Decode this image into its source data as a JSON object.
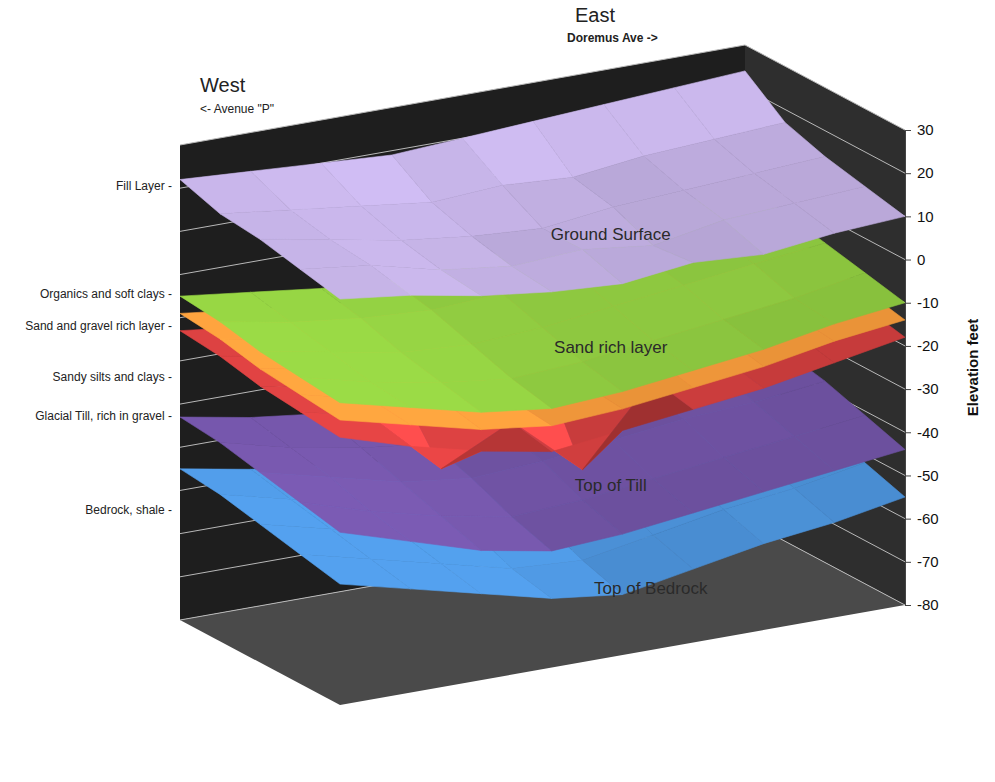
{
  "chart_data": {
    "type": "surface3d",
    "ylabel": "Elevation feet",
    "ylim": [
      -80,
      30
    ],
    "yticks": [
      -80,
      -70,
      -60,
      -50,
      -40,
      -30,
      -20,
      -10,
      0,
      10,
      20,
      30
    ],
    "grid": true,
    "direction_labels": [
      {
        "name": "West",
        "street": "<- Avenue \"P\""
      },
      {
        "name": "East",
        "street": "Doremus Ave ->"
      }
    ],
    "layer_labels": [
      "Fill Layer -",
      "Organics and soft clays -",
      "Sand and gravel rich layer -",
      "Sandy silts and clays -",
      "Glacial Till, rich in gravel -",
      "Bedrock, shale -"
    ],
    "series": [
      {
        "name": "Top of Bedrock",
        "color": "#4a8fd4",
        "values": [
          [
            -52,
            -56,
            -60,
            -64,
            -66,
            -63,
            -60,
            -58,
            -55
          ],
          [
            -50,
            -54,
            -58,
            -62,
            -63,
            -60,
            -57,
            -55,
            -52
          ],
          [
            -48,
            -52,
            -56,
            -58,
            -59,
            -56,
            -54,
            -52,
            -50
          ],
          [
            -46,
            -50,
            -53,
            -55,
            -55,
            -53,
            -51,
            -49,
            -47
          ],
          [
            -45,
            -48,
            -50,
            -52,
            -52,
            -50,
            -48,
            -46,
            -44
          ]
        ]
      },
      {
        "name": "Top of Till",
        "color": "#6b4f9c",
        "values": [
          [
            -40,
            -45,
            -50,
            -53,
            -52,
            -50,
            -48,
            -46,
            -44
          ],
          [
            -38,
            -43,
            -47,
            -50,
            -49,
            -47,
            -45,
            -43,
            -41
          ],
          [
            -36,
            -40,
            -44,
            -46,
            -45,
            -43,
            -41,
            -40,
            -38
          ],
          [
            -34,
            -38,
            -41,
            -43,
            -42,
            -40,
            -38,
            -37,
            -36
          ],
          [
            -33,
            -36,
            -38,
            -40,
            -39,
            -37,
            -36,
            -35,
            -34
          ]
        ]
      },
      {
        "name": null,
        "color": "#cc3d3d",
        "values": [
          [
            -18,
            -23,
            -27,
            -30,
            -28,
            -26,
            -24,
            -21,
            -18
          ],
          [
            -17,
            -21,
            -36,
            -28,
            -42,
            -24,
            -22,
            -19,
            -16
          ],
          [
            -16,
            -19,
            -23,
            -25,
            -23,
            -21,
            -18,
            -16,
            -14
          ],
          [
            -14,
            -17,
            -19,
            -21,
            -19,
            -17,
            -16,
            -14,
            -12
          ],
          [
            -13,
            -15,
            -17,
            -18,
            -17,
            -15,
            -14,
            -12,
            -11
          ]
        ]
      },
      {
        "name": null,
        "color": "#f0973a",
        "values": [
          [
            -14,
            -18,
            -22,
            -24,
            -23,
            -21,
            -19,
            -16,
            -14
          ],
          [
            -13,
            -17,
            -20,
            -23,
            -22,
            -19,
            -17,
            -15,
            -12
          ],
          [
            -12,
            -15,
            -19,
            -20,
            -18,
            -16,
            -14,
            -12,
            -10
          ],
          [
            -10,
            -13,
            -15,
            -16,
            -15,
            -13,
            -12,
            -10,
            -8
          ],
          [
            -9,
            -11,
            -13,
            -14,
            -13,
            -11,
            -10,
            -8,
            -7
          ]
        ]
      },
      {
        "name": "Sand rich layer",
        "color": "#8cc63f",
        "values": [
          [
            -10,
            -14,
            -18,
            -20,
            -19,
            -17,
            -15,
            -12,
            -10
          ],
          [
            -9,
            -13,
            -16,
            -18,
            -17,
            -15,
            -13,
            -11,
            -8
          ],
          [
            -8,
            -11,
            -14,
            -15,
            -14,
            -12,
            -10,
            -8,
            -6
          ],
          [
            -6,
            -9,
            -11,
            -12,
            -11,
            -9,
            -8,
            -6,
            -4
          ],
          [
            -5,
            -7,
            -9,
            -10,
            -9,
            -7,
            -6,
            -4,
            -3
          ]
        ]
      },
      {
        "name": "Ground Surface",
        "color": "#b7a6d6",
        "values": [
          [
            14,
            12,
            9,
            7,
            6,
            8,
            7,
            9,
            10
          ],
          [
            16,
            14,
            10,
            8,
            9,
            7,
            10,
            11,
            12
          ],
          [
            18,
            15,
            12,
            10,
            9,
            11,
            12,
            13,
            14
          ],
          [
            19,
            17,
            15,
            13,
            14,
            13,
            15,
            16,
            17
          ],
          [
            22,
            21,
            20,
            19,
            20,
            21,
            22,
            23,
            24
          ]
        ]
      }
    ]
  }
}
